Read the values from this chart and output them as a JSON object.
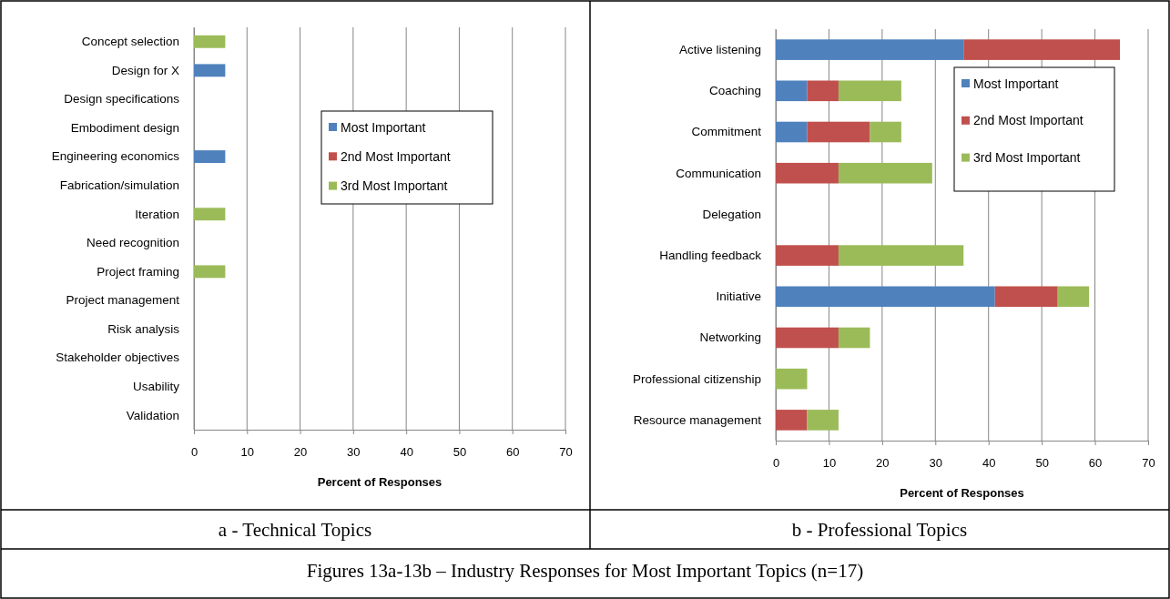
{
  "chart_data": [
    {
      "type": "bar",
      "orientation": "horizontal",
      "stacked": true,
      "xlabel": "Percent of Responses",
      "categories": [
        "Concept selection",
        "Design for X",
        "Design specifications",
        "Embodiment design",
        "Engineering economics",
        "Fabrication/simulation",
        "Iteration",
        "Need recognition",
        "Project framing",
        "Project management",
        "Risk analysis",
        "Stakeholder objectives",
        "Usability",
        "Validation"
      ],
      "series": [
        {
          "name": "Most Important",
          "color": "#4f81bd",
          "values": [
            0,
            5.9,
            0,
            0,
            5.9,
            0,
            0,
            0,
            0,
            0,
            0,
            0,
            0,
            0
          ]
        },
        {
          "name": "2nd Most Important",
          "color": "#c0504d",
          "values": [
            0,
            0,
            0,
            0,
            0,
            0,
            0,
            0,
            0,
            0,
            0,
            0,
            0,
            0
          ]
        },
        {
          "name": "3rd Most Important",
          "color": "#9bbb59",
          "values": [
            5.9,
            0,
            0,
            0,
            0,
            0,
            5.9,
            0,
            5.9,
            0,
            0,
            0,
            0,
            0
          ]
        }
      ],
      "xlim": [
        0,
        70
      ],
      "xticks": [
        0,
        10,
        20,
        30,
        40,
        50,
        60,
        70
      ],
      "grid": "x",
      "legend": "top right",
      "annotations": [
        "a - Technical Topics",
        "Figures 13a-13b – Industry Responses for Most Important Topics (n=17)"
      ]
    },
    {
      "type": "bar",
      "orientation": "horizontal",
      "stacked": true,
      "xlabel": "Percent of Responses",
      "categories": [
        "Active listening",
        "Coaching",
        "Commitment",
        "Communication",
        "Delegation",
        "Handling feedback",
        "Initiative",
        "Networking",
        "Professional citizenship",
        "Resource management"
      ],
      "series": [
        {
          "name": "Most Important",
          "color": "#4f81bd",
          "values": [
            35.3,
            5.9,
            5.9,
            0,
            0,
            0,
            41.2,
            0,
            0,
            0
          ]
        },
        {
          "name": "2nd Most Important",
          "color": "#c0504d",
          "values": [
            29.4,
            5.9,
            11.8,
            11.8,
            0,
            11.8,
            11.8,
            11.8,
            0,
            5.9
          ]
        },
        {
          "name": "3rd Most Important",
          "color": "#9bbb59",
          "values": [
            0,
            11.8,
            5.9,
            17.6,
            0,
            23.5,
            5.9,
            5.9,
            5.9,
            5.9
          ]
        }
      ],
      "xlim": [
        0,
        70
      ],
      "xticks": [
        0,
        10,
        20,
        30,
        40,
        50,
        60,
        70
      ],
      "grid": "x",
      "legend": "top right",
      "annotations": [
        "b - Professional Topics"
      ]
    }
  ]
}
